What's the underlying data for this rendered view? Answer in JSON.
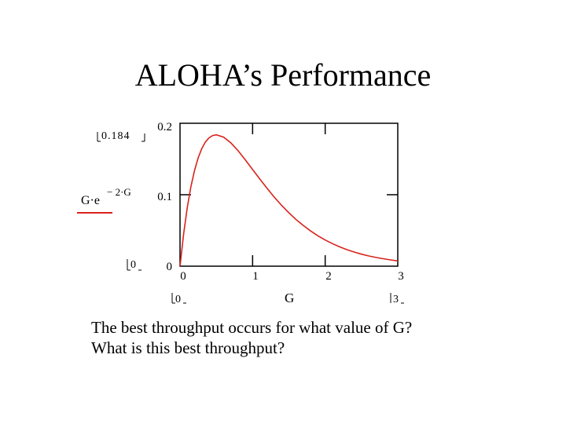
{
  "slide": {
    "title": "ALOHA’s Performance",
    "question_1": "The best throughput occurs for what value of G?",
    "question_2": "What is this best throughput?"
  },
  "chart_data": {
    "type": "line",
    "function": "G·e^(-2·G)",
    "x_range_labels": [
      "0",
      "3"
    ],
    "y_range_labels": [
      "0",
      "0.184"
    ],
    "xlim": [
      0,
      3
    ],
    "ylim": [
      0,
      0.2
    ],
    "xticks": [
      0,
      1,
      2,
      3
    ],
    "yticks": [
      0,
      0.1,
      0.2
    ],
    "x": [
      0,
      0.05,
      0.1,
      0.15,
      0.2,
      0.25,
      0.3,
      0.35,
      0.4,
      0.45,
      0.5,
      0.6,
      0.7,
      0.8,
      0.9,
      1.0,
      1.1,
      1.2,
      1.3,
      1.4,
      1.5,
      1.6,
      1.7,
      1.8,
      1.9,
      2.0,
      2.1,
      2.2,
      2.3,
      2.4,
      2.5,
      2.6,
      2.7,
      2.8,
      2.9,
      3.0
    ],
    "y": [
      0,
      0.0452,
      0.0819,
      0.1111,
      0.1341,
      0.1516,
      0.1646,
      0.1739,
      0.1797,
      0.1829,
      0.1839,
      0.1807,
      0.1726,
      0.1615,
      0.1488,
      0.1353,
      0.1219,
      0.1089,
      0.0965,
      0.0851,
      0.0747,
      0.0652,
      0.0568,
      0.0492,
      0.0425,
      0.0366,
      0.0315,
      0.027,
      0.0231,
      0.0198,
      0.0168,
      0.0143,
      0.0122,
      0.0104,
      0.0088,
      0.0074
    ],
    "ylabel": "G·e",
    "ylabel_exponent": "− 2·G",
    "xlabel": "G",
    "series_color": "#d9231b",
    "grid": false
  }
}
